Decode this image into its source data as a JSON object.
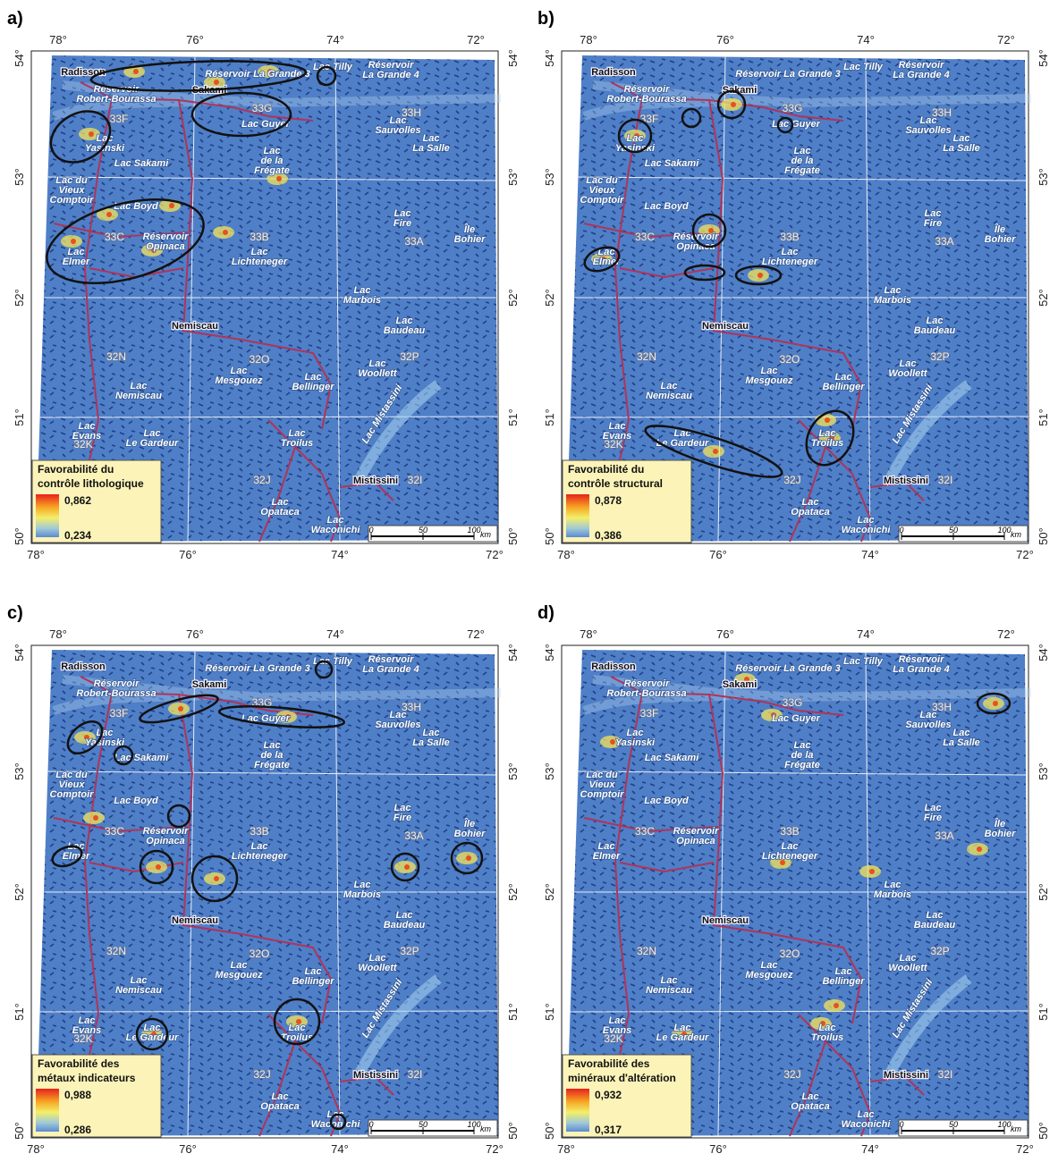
{
  "panels": [
    {
      "label": "a)",
      "legend": {
        "title": [
          "Favorabilité du",
          "contrôle lithologique"
        ],
        "max": "0,862",
        "min": "0,234"
      }
    },
    {
      "label": "b)",
      "legend": {
        "title": [
          "Favorabilité du",
          "contrôle structural"
        ],
        "max": "0,878",
        "min": "0,386"
      }
    },
    {
      "label": "c)",
      "legend": {
        "title": [
          "Favorabilité des",
          "métaux indicateurs"
        ],
        "max": "0,988",
        "min": "0,286"
      }
    },
    {
      "label": "d)",
      "legend": {
        "title": [
          "Favorabilité des",
          "minéraux d'altération"
        ],
        "max": "0,932",
        "min": "0,317"
      }
    }
  ],
  "longitudes": [
    "78°",
    "76°",
    "74°",
    "72°"
  ],
  "latitudes": [
    "54°",
    "53°",
    "52°",
    "51°",
    "50°"
  ],
  "places": [
    {
      "lines": [
        "Radisson"
      ]
    },
    {
      "lines": [
        "Réservoir La Grande 3"
      ]
    },
    {
      "lines": [
        "Lac Tilly"
      ]
    },
    {
      "lines": [
        "Réservoir",
        "La Grande 4"
      ]
    },
    {
      "lines": [
        "Réservoir",
        "Robert-Bourassa"
      ]
    },
    {
      "lines": [
        "Sakami"
      ]
    },
    {
      "lines": [
        "33F"
      ]
    },
    {
      "lines": [
        "33G"
      ]
    },
    {
      "lines": [
        "Lac Guyer"
      ]
    },
    {
      "lines": [
        "Lac",
        "Yasinski"
      ]
    },
    {
      "lines": [
        "Lac Sakami"
      ]
    },
    {
      "lines": [
        "33H"
      ]
    },
    {
      "lines": [
        "Lac",
        "Sauvolles"
      ]
    },
    {
      "lines": [
        "Lac",
        "La Salle"
      ]
    },
    {
      "lines": [
        "Lac",
        "de la",
        "Frégate"
      ]
    },
    {
      "lines": [
        "Lac du",
        "Vieux",
        "Comptoir"
      ]
    },
    {
      "lines": [
        "Lac Boyd"
      ]
    },
    {
      "lines": [
        "Lac",
        "Fire"
      ]
    },
    {
      "lines": [
        "Île",
        "Bohier"
      ]
    },
    {
      "lines": [
        "33C"
      ]
    },
    {
      "lines": [
        "Réservoir",
        "Opinaca"
      ]
    },
    {
      "lines": [
        "33B"
      ]
    },
    {
      "lines": [
        "33A"
      ]
    },
    {
      "lines": [
        "Lac",
        "Elmer"
      ]
    },
    {
      "lines": [
        "Lac",
        "Lichteneger"
      ]
    },
    {
      "lines": [
        "Lac",
        "Marbois"
      ]
    },
    {
      "lines": [
        "Nemiscau"
      ]
    },
    {
      "lines": [
        "Lac",
        "Baudeau"
      ]
    },
    {
      "lines": [
        "32N"
      ]
    },
    {
      "lines": [
        "32O"
      ]
    },
    {
      "lines": [
        "32P"
      ]
    },
    {
      "lines": [
        "Lac",
        "Mesgouez"
      ]
    },
    {
      "lines": [
        "Lac",
        "Woollett"
      ]
    },
    {
      "lines": [
        "Lac",
        "Bellinger"
      ]
    },
    {
      "lines": [
        "Lac",
        "Nemiscau"
      ]
    },
    {
      "lines": [
        "Lac",
        "Evans"
      ]
    },
    {
      "lines": [
        "32K"
      ]
    },
    {
      "lines": [
        "Lac",
        "Le Gardeur"
      ]
    },
    {
      "lines": [
        "Lac",
        "Troilus"
      ]
    },
    {
      "lines": [
        "Lac Mistassini"
      ]
    },
    {
      "lines": [
        "32J"
      ]
    },
    {
      "lines": [
        "Mistissini"
      ]
    },
    {
      "lines": [
        "32I"
      ]
    },
    {
      "lines": [
        "Lac",
        "Opataca"
      ]
    },
    {
      "lines": [
        "Lac",
        "Waconichi"
      ]
    }
  ],
  "scale": {
    "ticks": [
      "0",
      "50",
      "100"
    ],
    "unit": "km"
  }
}
